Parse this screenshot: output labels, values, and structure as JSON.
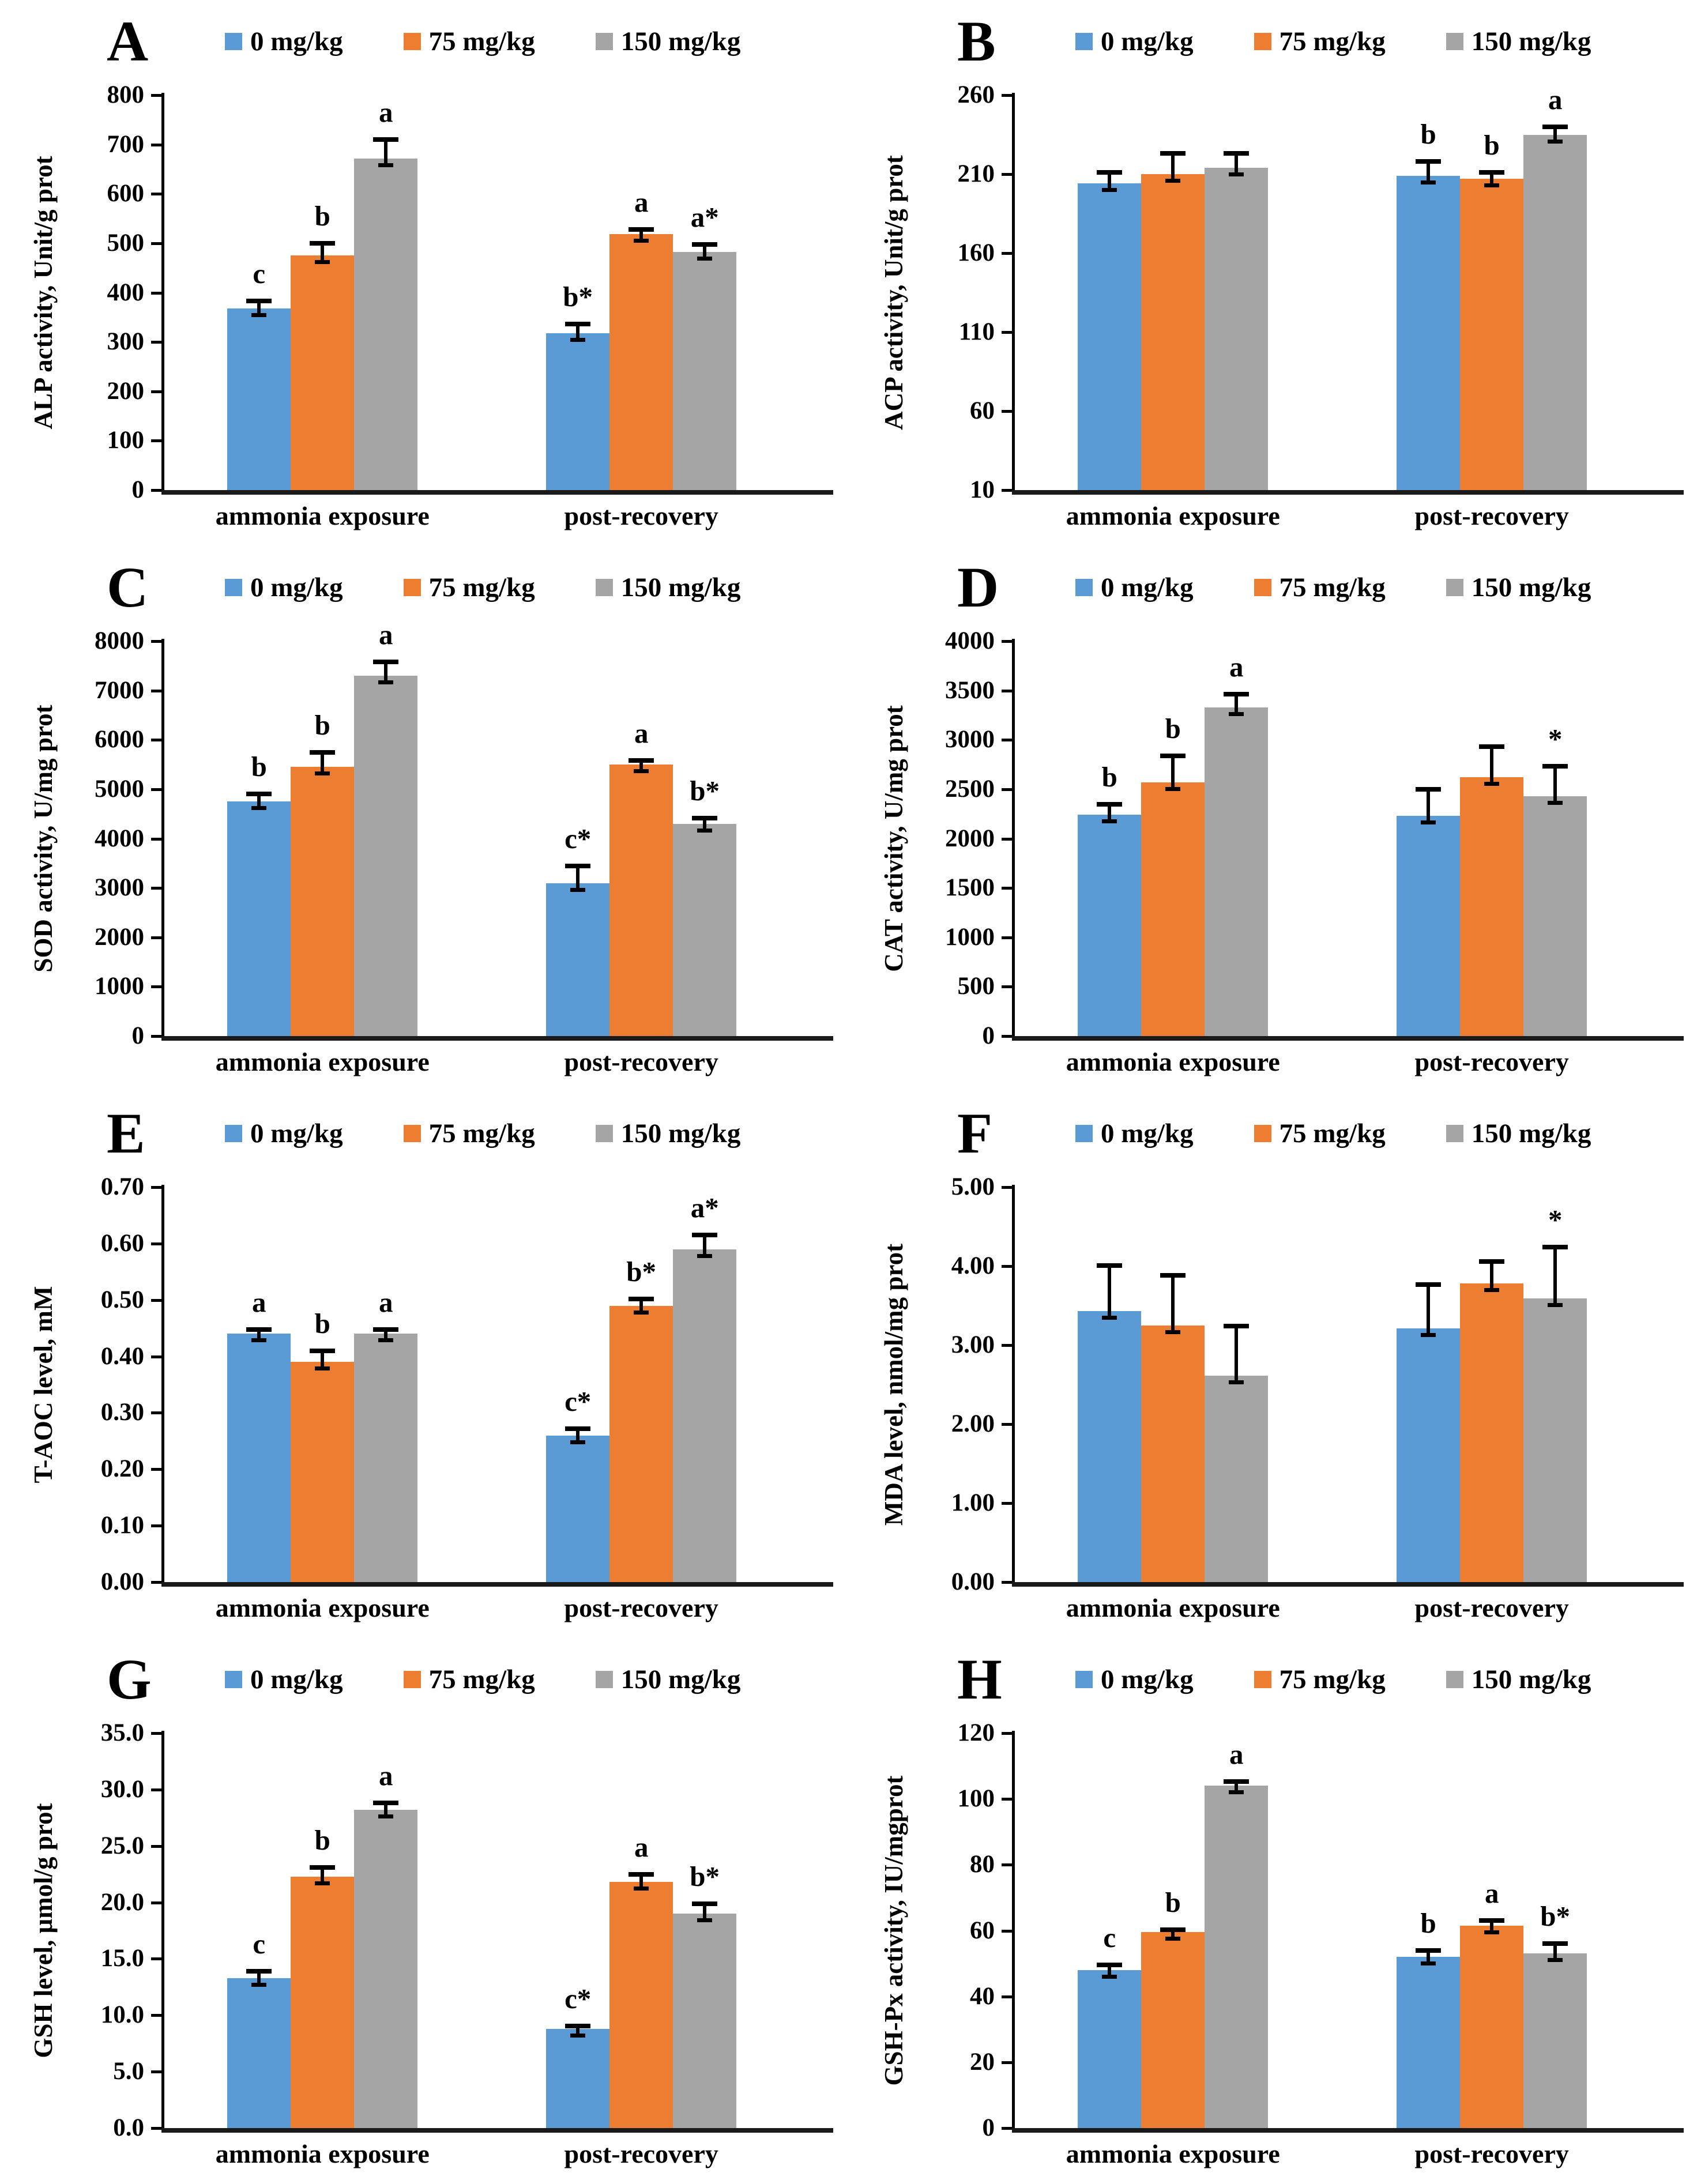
{
  "figure": {
    "legend_labels": [
      "0 mg/kg",
      "75 mg/kg",
      "150 mg/kg"
    ],
    "series_colors": [
      "#5B9BD5",
      "#ED7D31",
      "#A5A5A5"
    ],
    "axis_color": "#000000",
    "categories": [
      "ammonia exposure",
      "post-recovery"
    ]
  },
  "chart_data": [
    {
      "id": "A",
      "type": "bar",
      "ylabel": "ALP activity, Unit/g prot",
      "ymin": 0,
      "ymax": 800,
      "yticks": [
        "0",
        "100",
        "200",
        "300",
        "400",
        "500",
        "600",
        "700",
        "800"
      ],
      "categories": [
        "ammonia exposure",
        "post-recovery"
      ],
      "series": [
        {
          "name": "0 mg/kg",
          "values": [
            368,
            318
          ],
          "errors": [
            15,
            18
          ],
          "labels": [
            "c",
            "b*"
          ]
        },
        {
          "name": "75 mg/kg",
          "values": [
            475,
            518
          ],
          "errors": [
            25,
            10
          ],
          "labels": [
            "b",
            "a"
          ]
        },
        {
          "name": "150 mg/kg",
          "values": [
            672,
            482
          ],
          "errors": [
            38,
            15
          ],
          "labels": [
            "a",
            "a*"
          ]
        }
      ]
    },
    {
      "id": "B",
      "type": "bar",
      "ylabel": "ACP activity, Unit/g prot",
      "ymin": 10,
      "ymax": 260,
      "yticks": [
        "10",
        "60",
        "110",
        "160",
        "210",
        "260"
      ],
      "categories": [
        "ammonia exposure",
        "post-recovery"
      ],
      "series": [
        {
          "name": "0 mg/kg",
          "values": [
            204,
            209
          ],
          "errors": [
            7,
            9
          ],
          "labels": [
            "",
            "b"
          ]
        },
        {
          "name": "75 mg/kg",
          "values": [
            210,
            207
          ],
          "errors": [
            13,
            4
          ],
          "labels": [
            "",
            "b"
          ]
        },
        {
          "name": "150 mg/kg",
          "values": [
            214,
            235
          ],
          "errors": [
            9,
            5
          ],
          "labels": [
            "",
            "a"
          ]
        }
      ]
    },
    {
      "id": "C",
      "type": "bar",
      "ylabel": "SOD activity, U/mg prot",
      "ymin": 0,
      "ymax": 8000,
      "yticks": [
        "0",
        "1000",
        "2000",
        "3000",
        "4000",
        "5000",
        "6000",
        "7000",
        "8000"
      ],
      "categories": [
        "ammonia exposure",
        "post-recovery"
      ],
      "series": [
        {
          "name": "0 mg/kg",
          "values": [
            4750,
            3100
          ],
          "errors": [
            150,
            350
          ],
          "labels": [
            "b",
            "c*"
          ]
        },
        {
          "name": "75 mg/kg",
          "values": [
            5450,
            5500
          ],
          "errors": [
            300,
            80
          ],
          "labels": [
            "b",
            "a"
          ]
        },
        {
          "name": "150 mg/kg",
          "values": [
            7300,
            4300
          ],
          "errors": [
            280,
            120
          ],
          "labels": [
            "a",
            "b*"
          ]
        }
      ]
    },
    {
      "id": "D",
      "type": "bar",
      "ylabel": "CAT activity, U/mg prot",
      "ymin": 0,
      "ymax": 4000,
      "yticks": [
        "0",
        "500",
        "1000",
        "1500",
        "2000",
        "2500",
        "3000",
        "3500",
        "4000"
      ],
      "categories": [
        "ammonia exposure",
        "post-recovery"
      ],
      "series": [
        {
          "name": "0 mg/kg",
          "values": [
            2240,
            2230
          ],
          "errors": [
            110,
            270
          ],
          "labels": [
            "b",
            ""
          ]
        },
        {
          "name": "75 mg/kg",
          "values": [
            2570,
            2620
          ],
          "errors": [
            270,
            310
          ],
          "labels": [
            "b",
            ""
          ]
        },
        {
          "name": "150 mg/kg",
          "values": [
            3330,
            2430
          ],
          "errors": [
            130,
            300
          ],
          "labels": [
            "a",
            "*"
          ]
        }
      ]
    },
    {
      "id": "E",
      "type": "bar",
      "ylabel": "T-AOC level, mM",
      "ymin": 0,
      "ymax": 0.7,
      "yticks": [
        "0.00",
        "0.10",
        "0.20",
        "0.30",
        "0.40",
        "0.50",
        "0.60",
        "0.70"
      ],
      "categories": [
        "ammonia exposure",
        "post-recovery"
      ],
      "series": [
        {
          "name": "0 mg/kg",
          "values": [
            0.44,
            0.26
          ],
          "errors": [
            0.008,
            0.012
          ],
          "labels": [
            "a",
            "c*"
          ]
        },
        {
          "name": "75 mg/kg",
          "values": [
            0.39,
            0.49
          ],
          "errors": [
            0.02,
            0.012
          ],
          "labels": [
            "b",
            "b*"
          ]
        },
        {
          "name": "150 mg/kg",
          "values": [
            0.44,
            0.59
          ],
          "errors": [
            0.008,
            0.025
          ],
          "labels": [
            "a",
            "a*"
          ]
        }
      ]
    },
    {
      "id": "F",
      "type": "bar",
      "ylabel": "MDA level, nmol/mg prot",
      "ymin": 0,
      "ymax": 5.0,
      "yticks": [
        "0.00",
        "1.00",
        "2.00",
        "3.00",
        "4.00",
        "5.00"
      ],
      "categories": [
        "ammonia exposure",
        "post-recovery"
      ],
      "series": [
        {
          "name": "0 mg/kg",
          "values": [
            3.43,
            3.21
          ],
          "errors": [
            0.58,
            0.56
          ],
          "labels": [
            "",
            ""
          ]
        },
        {
          "name": "75 mg/kg",
          "values": [
            3.25,
            3.78
          ],
          "errors": [
            0.63,
            0.28
          ],
          "labels": [
            "",
            ""
          ]
        },
        {
          "name": "150 mg/kg",
          "values": [
            2.61,
            3.59
          ],
          "errors": [
            0.63,
            0.65
          ],
          "labels": [
            "",
            "*"
          ]
        }
      ]
    },
    {
      "id": "G",
      "type": "bar",
      "ylabel": "GSH level, μmol/g prot",
      "ymin": 0,
      "ymax": 35.0,
      "yticks": [
        "0.0",
        "5.0",
        "10.0",
        "15.0",
        "20.0",
        "25.0",
        "30.0",
        "35.0"
      ],
      "categories": [
        "ammonia exposure",
        "post-recovery"
      ],
      "series": [
        {
          "name": "0 mg/kg",
          "values": [
            13.3,
            8.8
          ],
          "errors": [
            0.6,
            0.25
          ],
          "labels": [
            "c",
            "c*"
          ]
        },
        {
          "name": "75 mg/kg",
          "values": [
            22.3,
            21.8
          ],
          "errors": [
            0.8,
            0.7
          ],
          "labels": [
            "b",
            "a"
          ]
        },
        {
          "name": "150 mg/kg",
          "values": [
            28.2,
            19.0
          ],
          "errors": [
            0.6,
            0.9
          ],
          "labels": [
            "a",
            "b*"
          ]
        }
      ]
    },
    {
      "id": "H",
      "type": "bar",
      "ylabel": "GSH-Px activity, IU/mgprot",
      "ymin": 0,
      "ymax": 120,
      "yticks": [
        "0",
        "20",
        "40",
        "60",
        "80",
        "100",
        "120"
      ],
      "categories": [
        "ammonia exposure",
        "post-recovery"
      ],
      "series": [
        {
          "name": "0 mg/kg",
          "values": [
            48,
            52
          ],
          "errors": [
            1.5,
            2.0
          ],
          "labels": [
            "c",
            "b"
          ]
        },
        {
          "name": "75 mg/kg",
          "values": [
            59.5,
            61.5
          ],
          "errors": [
            0.8,
            1.5
          ],
          "labels": [
            "b",
            "a"
          ]
        },
        {
          "name": "150 mg/kg",
          "values": [
            104,
            53
          ],
          "errors": [
            1.2,
            3.0
          ],
          "labels": [
            "a",
            "b*"
          ]
        }
      ]
    }
  ]
}
